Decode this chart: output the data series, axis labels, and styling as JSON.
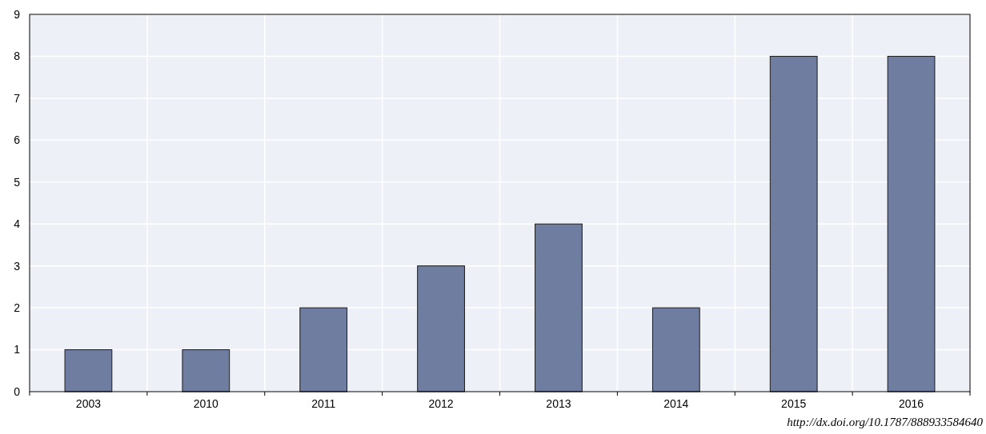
{
  "chart_data": {
    "type": "bar",
    "categories": [
      "2003",
      "2010",
      "2011",
      "2012",
      "2013",
      "2014",
      "2015",
      "2016"
    ],
    "values": [
      1,
      1,
      2,
      3,
      4,
      2,
      8,
      8
    ],
    "color": "#6f7ea0",
    "ylim": [
      0,
      9
    ],
    "yticks": [
      0,
      1,
      2,
      3,
      4,
      5,
      6,
      7,
      8,
      9
    ],
    "grid": true,
    "annotations": [
      "http://dx.doi.org/10.1787/888933584640"
    ]
  }
}
